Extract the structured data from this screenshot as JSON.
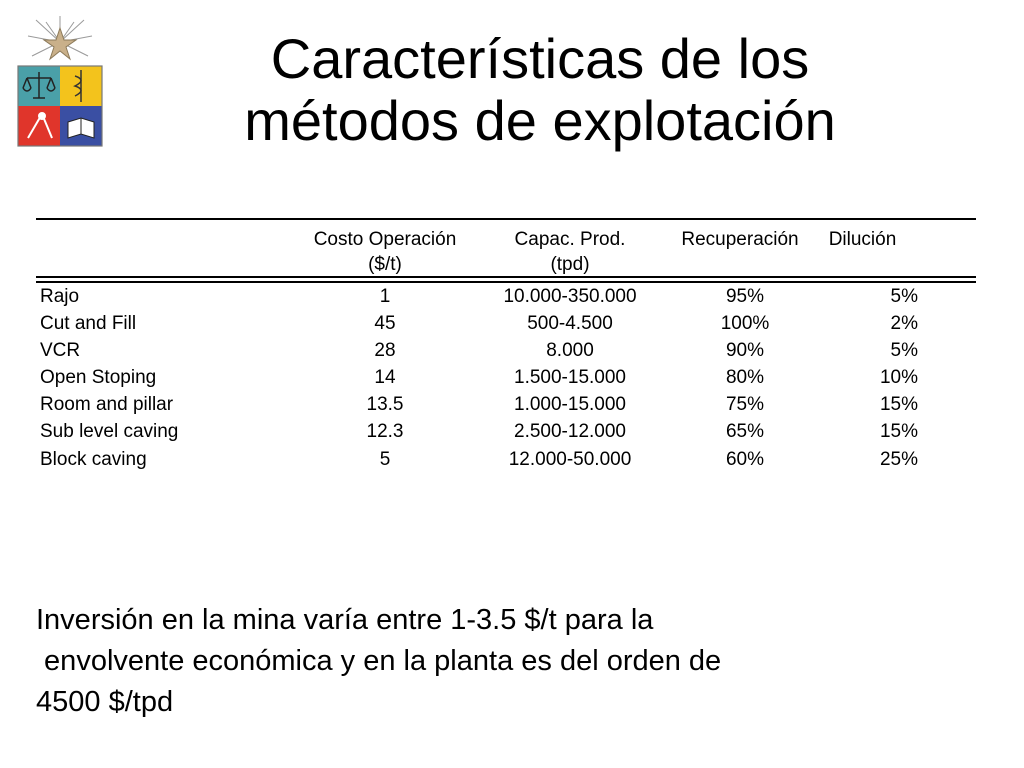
{
  "slide": {
    "title_lines": [
      "Características de los",
      "métodos de explotación"
    ],
    "logo": {
      "icon": "university-coat-of-arms-icon"
    }
  },
  "table": {
    "headers": [
      [
        "Costo Operación",
        "($/t)"
      ],
      [
        "Capac. Prod.",
        "(tpd)"
      ],
      [
        "Recuperación"
      ],
      [
        "Dilución"
      ]
    ],
    "rows": [
      [
        "Rajo",
        "1",
        "10.000-350.000",
        "95%",
        "5%"
      ],
      [
        "Cut and Fill",
        "45",
        "500-4.500",
        "100%",
        "2%"
      ],
      [
        "VCR",
        "28",
        "8.000",
        "90%",
        "5%"
      ],
      [
        "Open Stoping",
        "14",
        "1.500-15.000",
        "80%",
        "10%"
      ],
      [
        "Room and pillar",
        "13.5",
        "1.000-15.000",
        "75%",
        "15%"
      ],
      [
        "Sub level caving",
        "12.3",
        "2.500-12.000",
        "65%",
        "15%"
      ],
      [
        "Block caving",
        "5",
        "12.000-50.000",
        "60%",
        "25%"
      ]
    ]
  },
  "note": {
    "lines": [
      "Inversión en la mina varía entre 1-3.5 $/t para la",
      " envolvente económica y en la planta es del orden de",
      "4500 $/tpd"
    ]
  },
  "colors": {
    "text": "#000000",
    "background": "#ffffff",
    "logo_red": "#e0352b",
    "logo_yellow": "#f3c31c",
    "logo_blue": "#3a4fa3",
    "logo_teal": "#4aa0a8"
  }
}
